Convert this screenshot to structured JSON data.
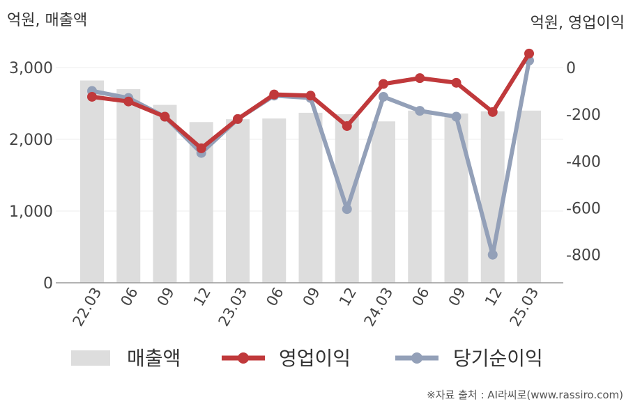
{
  "chart_data": {
    "type": "bar+line",
    "categories": [
      "22.03",
      "06",
      "09",
      "12",
      "23.03",
      "06",
      "09",
      "12",
      "24.03",
      "06",
      "09",
      "12",
      "25.03"
    ],
    "left_axis_label": "억원, 매출액",
    "right_axis_label": "억원, 영업이익",
    "left_ticks": [
      "3,000",
      "2,000",
      "1,000",
      "0"
    ],
    "right_ticks": [
      "0",
      "-200",
      "-400",
      "-600",
      "-800"
    ],
    "ylim_left": [
      0,
      3000
    ],
    "ylim_right": [
      -920,
      0
    ],
    "grid": true,
    "legend_position": "bottom",
    "series": [
      {
        "name": "매출액",
        "type": "bar",
        "axis": "left",
        "color": "#dddddd",
        "values": [
          2820,
          2700,
          2480,
          2240,
          2280,
          2290,
          2370,
          2350,
          2250,
          2400,
          2360,
          2390,
          2400
        ]
      },
      {
        "name": "영업이익",
        "type": "line",
        "axis": "right",
        "color": "#c0393b",
        "values": [
          -125,
          -145,
          -210,
          -345,
          -220,
          -115,
          -120,
          -250,
          -70,
          -45,
          -65,
          -190,
          60
        ]
      },
      {
        "name": "당기순이익",
        "type": "line",
        "axis": "right",
        "color": "#93a0b8",
        "values": [
          -100,
          -130,
          -210,
          -365,
          -220,
          -120,
          -130,
          -605,
          -125,
          -185,
          -210,
          -800,
          30
        ]
      }
    ]
  },
  "source": "※자료 출처 : AI라씨로(www.rassiro.com)"
}
